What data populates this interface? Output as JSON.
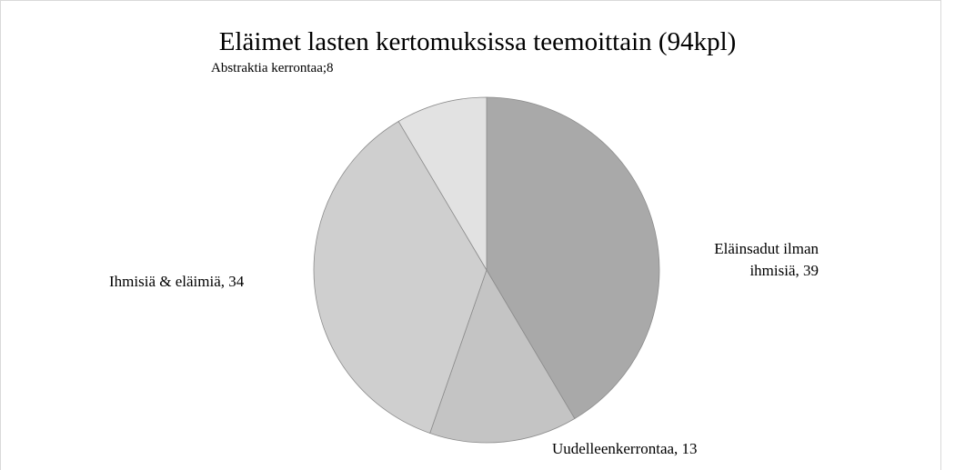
{
  "chart_data": {
    "type": "pie",
    "title": "Eläimet lasten kertomuksissa teemoittain (94kpl)",
    "values": [
      39,
      13,
      34,
      8
    ],
    "value_labels": [
      "Eläinsadut ilman ihmisiä, 39",
      "Uudelleenkerrontaa, 13",
      "Ihmisiä & eläimiä, 34",
      "Abstraktia kerrontaa;8"
    ],
    "colors": [
      "#a9a9a9",
      "#c4c4c4",
      "#cfcfcf",
      "#e2e2e2"
    ]
  }
}
